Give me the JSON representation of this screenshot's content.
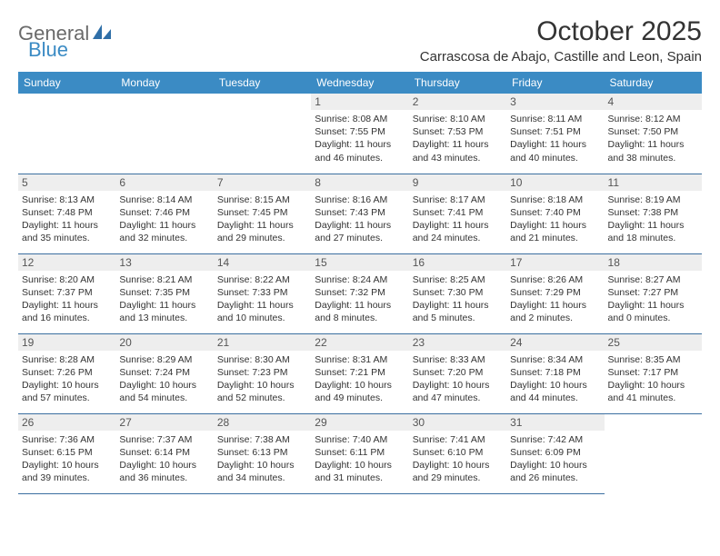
{
  "logo": {
    "part1": "General",
    "part2": "Blue"
  },
  "title": "October 2025",
  "location": "Carrascosa de Abajo, Castille and Leon, Spain",
  "colors": {
    "header_bg": "#3b8bc4",
    "header_text": "#ffffff",
    "daynum_bg": "#eeeeee",
    "cell_border": "#3b6fa0",
    "body_text": "#333333",
    "logo_gray": "#6a6a6a",
    "logo_blue": "#3b8bc4",
    "page_bg": "#ffffff"
  },
  "weekdays": [
    "Sunday",
    "Monday",
    "Tuesday",
    "Wednesday",
    "Thursday",
    "Friday",
    "Saturday"
  ],
  "weeks": [
    [
      null,
      null,
      null,
      {
        "n": "1",
        "sr": "Sunrise: 8:08 AM",
        "ss": "Sunset: 7:55 PM",
        "dl": "Daylight: 11 hours and 46 minutes."
      },
      {
        "n": "2",
        "sr": "Sunrise: 8:10 AM",
        "ss": "Sunset: 7:53 PM",
        "dl": "Daylight: 11 hours and 43 minutes."
      },
      {
        "n": "3",
        "sr": "Sunrise: 8:11 AM",
        "ss": "Sunset: 7:51 PM",
        "dl": "Daylight: 11 hours and 40 minutes."
      },
      {
        "n": "4",
        "sr": "Sunrise: 8:12 AM",
        "ss": "Sunset: 7:50 PM",
        "dl": "Daylight: 11 hours and 38 minutes."
      }
    ],
    [
      {
        "n": "5",
        "sr": "Sunrise: 8:13 AM",
        "ss": "Sunset: 7:48 PM",
        "dl": "Daylight: 11 hours and 35 minutes."
      },
      {
        "n": "6",
        "sr": "Sunrise: 8:14 AM",
        "ss": "Sunset: 7:46 PM",
        "dl": "Daylight: 11 hours and 32 minutes."
      },
      {
        "n": "7",
        "sr": "Sunrise: 8:15 AM",
        "ss": "Sunset: 7:45 PM",
        "dl": "Daylight: 11 hours and 29 minutes."
      },
      {
        "n": "8",
        "sr": "Sunrise: 8:16 AM",
        "ss": "Sunset: 7:43 PM",
        "dl": "Daylight: 11 hours and 27 minutes."
      },
      {
        "n": "9",
        "sr": "Sunrise: 8:17 AM",
        "ss": "Sunset: 7:41 PM",
        "dl": "Daylight: 11 hours and 24 minutes."
      },
      {
        "n": "10",
        "sr": "Sunrise: 8:18 AM",
        "ss": "Sunset: 7:40 PM",
        "dl": "Daylight: 11 hours and 21 minutes."
      },
      {
        "n": "11",
        "sr": "Sunrise: 8:19 AM",
        "ss": "Sunset: 7:38 PM",
        "dl": "Daylight: 11 hours and 18 minutes."
      }
    ],
    [
      {
        "n": "12",
        "sr": "Sunrise: 8:20 AM",
        "ss": "Sunset: 7:37 PM",
        "dl": "Daylight: 11 hours and 16 minutes."
      },
      {
        "n": "13",
        "sr": "Sunrise: 8:21 AM",
        "ss": "Sunset: 7:35 PM",
        "dl": "Daylight: 11 hours and 13 minutes."
      },
      {
        "n": "14",
        "sr": "Sunrise: 8:22 AM",
        "ss": "Sunset: 7:33 PM",
        "dl": "Daylight: 11 hours and 10 minutes."
      },
      {
        "n": "15",
        "sr": "Sunrise: 8:24 AM",
        "ss": "Sunset: 7:32 PM",
        "dl": "Daylight: 11 hours and 8 minutes."
      },
      {
        "n": "16",
        "sr": "Sunrise: 8:25 AM",
        "ss": "Sunset: 7:30 PM",
        "dl": "Daylight: 11 hours and 5 minutes."
      },
      {
        "n": "17",
        "sr": "Sunrise: 8:26 AM",
        "ss": "Sunset: 7:29 PM",
        "dl": "Daylight: 11 hours and 2 minutes."
      },
      {
        "n": "18",
        "sr": "Sunrise: 8:27 AM",
        "ss": "Sunset: 7:27 PM",
        "dl": "Daylight: 11 hours and 0 minutes."
      }
    ],
    [
      {
        "n": "19",
        "sr": "Sunrise: 8:28 AM",
        "ss": "Sunset: 7:26 PM",
        "dl": "Daylight: 10 hours and 57 minutes."
      },
      {
        "n": "20",
        "sr": "Sunrise: 8:29 AM",
        "ss": "Sunset: 7:24 PM",
        "dl": "Daylight: 10 hours and 54 minutes."
      },
      {
        "n": "21",
        "sr": "Sunrise: 8:30 AM",
        "ss": "Sunset: 7:23 PM",
        "dl": "Daylight: 10 hours and 52 minutes."
      },
      {
        "n": "22",
        "sr": "Sunrise: 8:31 AM",
        "ss": "Sunset: 7:21 PM",
        "dl": "Daylight: 10 hours and 49 minutes."
      },
      {
        "n": "23",
        "sr": "Sunrise: 8:33 AM",
        "ss": "Sunset: 7:20 PM",
        "dl": "Daylight: 10 hours and 47 minutes."
      },
      {
        "n": "24",
        "sr": "Sunrise: 8:34 AM",
        "ss": "Sunset: 7:18 PM",
        "dl": "Daylight: 10 hours and 44 minutes."
      },
      {
        "n": "25",
        "sr": "Sunrise: 8:35 AM",
        "ss": "Sunset: 7:17 PM",
        "dl": "Daylight: 10 hours and 41 minutes."
      }
    ],
    [
      {
        "n": "26",
        "sr": "Sunrise: 7:36 AM",
        "ss": "Sunset: 6:15 PM",
        "dl": "Daylight: 10 hours and 39 minutes."
      },
      {
        "n": "27",
        "sr": "Sunrise: 7:37 AM",
        "ss": "Sunset: 6:14 PM",
        "dl": "Daylight: 10 hours and 36 minutes."
      },
      {
        "n": "28",
        "sr": "Sunrise: 7:38 AM",
        "ss": "Sunset: 6:13 PM",
        "dl": "Daylight: 10 hours and 34 minutes."
      },
      {
        "n": "29",
        "sr": "Sunrise: 7:40 AM",
        "ss": "Sunset: 6:11 PM",
        "dl": "Daylight: 10 hours and 31 minutes."
      },
      {
        "n": "30",
        "sr": "Sunrise: 7:41 AM",
        "ss": "Sunset: 6:10 PM",
        "dl": "Daylight: 10 hours and 29 minutes."
      },
      {
        "n": "31",
        "sr": "Sunrise: 7:42 AM",
        "ss": "Sunset: 6:09 PM",
        "dl": "Daylight: 10 hours and 26 minutes."
      },
      null
    ]
  ]
}
